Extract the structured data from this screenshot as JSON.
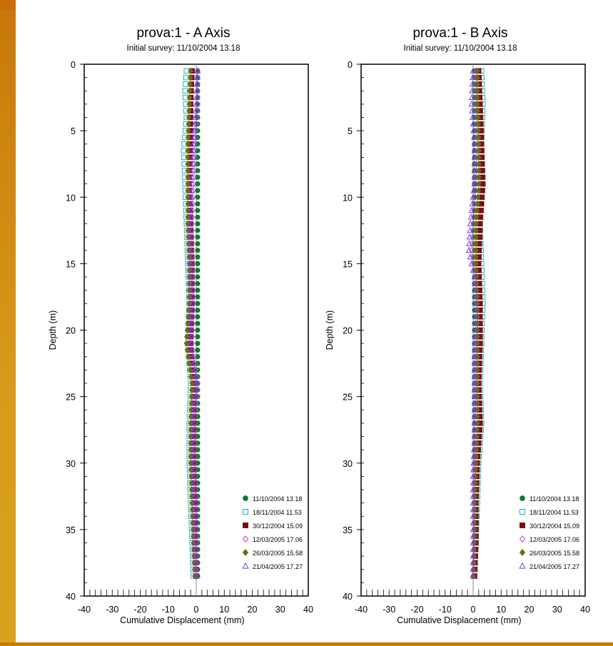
{
  "chart_data": [
    {
      "type": "scatter",
      "title": "prova:1 - A Axis",
      "subtitle": "Initial survey: 11/10/2004 13.18",
      "xlabel": "Cumulative Displacement (mm)",
      "ylabel": "Depth (m)",
      "xlim": [
        -40,
        40
      ],
      "ylim": [
        0,
        40
      ],
      "y_inverted": true,
      "xticks": [
        -40,
        -30,
        -20,
        -10,
        0,
        10,
        20,
        30,
        40
      ],
      "yticks": [
        0,
        5,
        10,
        15,
        20,
        25,
        30,
        35,
        40
      ],
      "legend": "bottom-right",
      "series": [
        {
          "name": "11/10/2004 13.18",
          "color": "#0b7a2a",
          "marker": "circle",
          "points": [
            [
              0.5,
              0.5
            ],
            [
              0.5,
              10
            ],
            [
              0.5,
              20
            ],
            [
              0.5,
              30
            ],
            [
              0.5,
              38.5
            ]
          ]
        },
        {
          "name": "18/11/2004 11.53",
          "color": "#2aa9b0",
          "marker": "square",
          "points": [
            [
              -3.5,
              0.5
            ],
            [
              -4,
              2
            ],
            [
              -3.5,
              4
            ],
            [
              -4.5,
              6.5
            ],
            [
              -4,
              9
            ],
            [
              -3.5,
              12
            ],
            [
              -3,
              15
            ],
            [
              -2.5,
              18
            ],
            [
              -3,
              21
            ],
            [
              -2,
              24
            ],
            [
              -2.5,
              27
            ],
            [
              -2.5,
              30
            ],
            [
              -2,
              33
            ],
            [
              -1.5,
              36
            ],
            [
              -1,
              38.5
            ]
          ]
        },
        {
          "name": "30/12/2004 15.09",
          "color": "#7a0e12",
          "marker": "square",
          "points": [
            [
              -1.5,
              0.5
            ],
            [
              -2,
              3
            ],
            [
              -2,
              6
            ],
            [
              -2.5,
              9
            ],
            [
              -2,
              12
            ],
            [
              -1.5,
              15
            ],
            [
              -1.5,
              18
            ],
            [
              -2,
              21
            ],
            [
              -1,
              24
            ],
            [
              -1,
              27
            ],
            [
              -1,
              30
            ],
            [
              -0.5,
              33
            ],
            [
              -0.5,
              36
            ],
            [
              0,
              38.5
            ]
          ]
        },
        {
          "name": "12/03/2005 17.06",
          "color": "#c03fc0",
          "marker": "diamond",
          "points": [
            [
              0.5,
              0.5
            ],
            [
              0.5,
              3
            ],
            [
              -0.5,
              6
            ],
            [
              -1,
              9
            ],
            [
              -1.5,
              12
            ],
            [
              -1.5,
              15
            ],
            [
              -1,
              18
            ],
            [
              -1.5,
              21
            ],
            [
              0.5,
              24
            ],
            [
              -0.5,
              27
            ],
            [
              -0.5,
              30
            ],
            [
              0,
              33
            ],
            [
              0,
              36
            ],
            [
              0,
              38.5
            ]
          ]
        },
        {
          "name": "26/03/2005 15.58",
          "color": "#6b6b12",
          "marker": "diamond",
          "points": [
            [
              -2,
              0.5
            ],
            [
              -2.5,
              3
            ],
            [
              -3,
              6
            ],
            [
              -3,
              9
            ],
            [
              -3,
              12
            ],
            [
              -2.5,
              15
            ],
            [
              -2.5,
              18
            ],
            [
              -3.5,
              21
            ],
            [
              -1.5,
              24
            ],
            [
              -2,
              27
            ],
            [
              -2,
              30
            ],
            [
              -1.5,
              33
            ],
            [
              -1,
              36
            ],
            [
              -0.5,
              38.5
            ]
          ]
        },
        {
          "name": "21/04/2005 17.27",
          "color": "#7a3af0",
          "marker": "triangle",
          "points": [
            [
              0.5,
              0.5
            ],
            [
              0,
              3
            ],
            [
              -1,
              6
            ],
            [
              -1.5,
              9
            ],
            [
              -2,
              12
            ],
            [
              -2,
              15
            ],
            [
              -1.5,
              18
            ],
            [
              -2,
              21
            ],
            [
              0,
              24
            ],
            [
              -1,
              27
            ],
            [
              -1,
              30
            ],
            [
              -0.5,
              33
            ],
            [
              -0.5,
              36
            ],
            [
              0,
              38.5
            ]
          ]
        }
      ]
    },
    {
      "type": "scatter",
      "title": "prova:1 - B Axis",
      "subtitle": "Initial survey: 11/10/2004 13.18",
      "xlabel": "Cumulative Displacement (mm)",
      "ylabel": "Depth (m)",
      "xlim": [
        -40,
        40
      ],
      "ylim": [
        0,
        40
      ],
      "y_inverted": true,
      "xticks": [
        -40,
        -30,
        -20,
        -10,
        0,
        10,
        20,
        30,
        40
      ],
      "yticks": [
        0,
        5,
        10,
        15,
        20,
        25,
        30,
        35,
        40
      ],
      "legend": "bottom-right",
      "series": [
        {
          "name": "11/10/2004 13.18",
          "color": "#0b7a2a",
          "marker": "circle",
          "points": [
            [
              0.5,
              0.5
            ],
            [
              0.5,
              10
            ],
            [
              0.5,
              20
            ],
            [
              0.5,
              30
            ],
            [
              0.5,
              38.5
            ]
          ]
        },
        {
          "name": "18/11/2004 11.53",
          "color": "#2aa9b0",
          "marker": "square",
          "points": [
            [
              3,
              0.5
            ],
            [
              3.5,
              3
            ],
            [
              3,
              6
            ],
            [
              3,
              9
            ],
            [
              2.5,
              12
            ],
            [
              3,
              15
            ],
            [
              3.5,
              18
            ],
            [
              3,
              21
            ],
            [
              2.5,
              24
            ],
            [
              3,
              27
            ],
            [
              2,
              30
            ],
            [
              1.5,
              33
            ],
            [
              1,
              36
            ],
            [
              0.5,
              38.5
            ]
          ]
        },
        {
          "name": "30/12/2004 15.09",
          "color": "#7a0e12",
          "marker": "square",
          "points": [
            [
              2,
              0.5
            ],
            [
              2.5,
              3
            ],
            [
              3,
              6
            ],
            [
              3.5,
              9
            ],
            [
              2.5,
              12
            ],
            [
              2,
              15
            ],
            [
              2.5,
              18
            ],
            [
              2.5,
              21
            ],
            [
              2,
              24
            ],
            [
              2.5,
              27
            ],
            [
              1.5,
              30
            ],
            [
              1,
              33
            ],
            [
              1,
              36
            ],
            [
              0.5,
              38.5
            ]
          ]
        },
        {
          "name": "12/03/2005 17.06",
          "color": "#c03fc0",
          "marker": "diamond",
          "points": [
            [
              1,
              0.5
            ],
            [
              1,
              3
            ],
            [
              1.5,
              6
            ],
            [
              1,
              9
            ],
            [
              0,
              12
            ],
            [
              -0.5,
              14
            ],
            [
              1,
              16
            ],
            [
              1.5,
              19
            ],
            [
              1,
              22
            ],
            [
              1,
              25
            ],
            [
              0.5,
              28
            ],
            [
              0.5,
              31
            ],
            [
              0.5,
              34
            ],
            [
              0,
              38.5
            ]
          ]
        },
        {
          "name": "26/03/2005 15.58",
          "color": "#6b6b12",
          "marker": "diamond",
          "points": [
            [
              1.5,
              0.5
            ],
            [
              1.5,
              3
            ],
            [
              2,
              6
            ],
            [
              2,
              9
            ],
            [
              1,
              12
            ],
            [
              1,
              15
            ],
            [
              1.5,
              18
            ],
            [
              1.5,
              21
            ],
            [
              1.5,
              24
            ],
            [
              1.5,
              27
            ],
            [
              1,
              30
            ],
            [
              0.5,
              33
            ],
            [
              0.5,
              36
            ],
            [
              0,
              38.5
            ]
          ]
        },
        {
          "name": "21/04/2005 17.27",
          "color": "#7a3af0",
          "marker": "triangle",
          "points": [
            [
              0,
              0.5
            ],
            [
              -0.5,
              3
            ],
            [
              0.5,
              6
            ],
            [
              0.5,
              9
            ],
            [
              -1,
              12
            ],
            [
              -1.5,
              14
            ],
            [
              0.5,
              16
            ],
            [
              1,
              19
            ],
            [
              0.5,
              22
            ],
            [
              0.5,
              25
            ],
            [
              0.5,
              28
            ],
            [
              0,
              31
            ],
            [
              0,
              34
            ],
            [
              0,
              38.5
            ]
          ]
        }
      ]
    }
  ]
}
